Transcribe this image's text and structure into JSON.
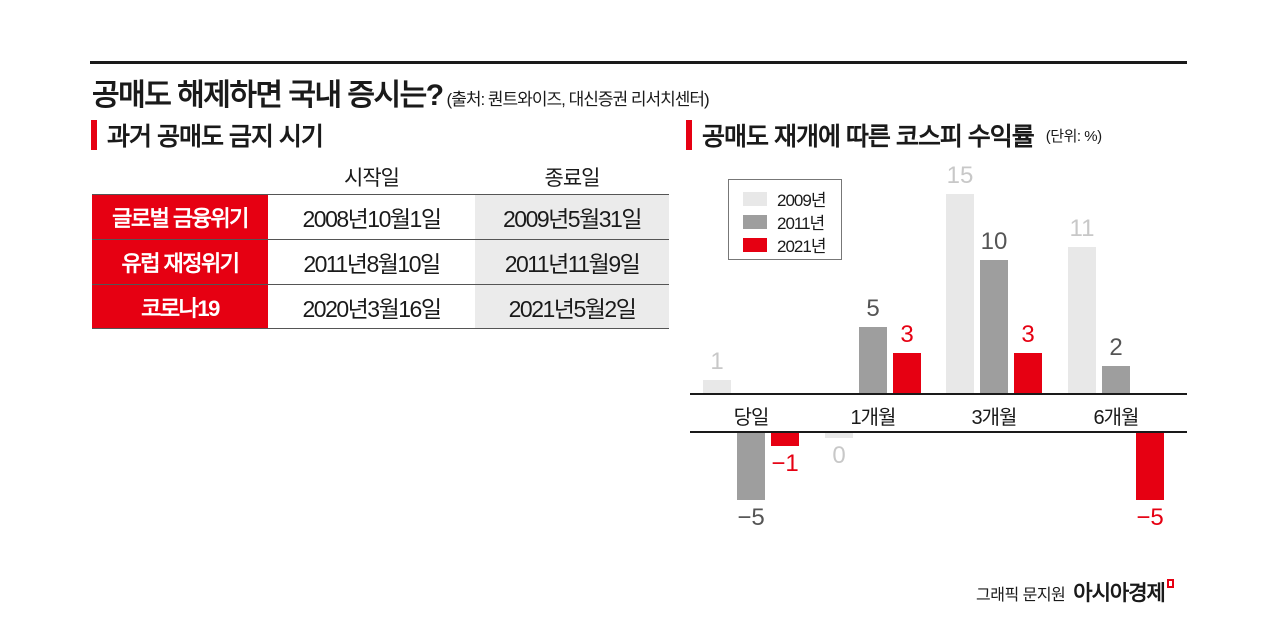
{
  "header": {
    "title": "공매도 해제하면 국내 증시는?",
    "source": "(출처: 퀀트와이즈, 대신증권 리서치센터)"
  },
  "left_section": {
    "title": "과거 공매도 금지 시기",
    "columns": [
      "",
      "시작일",
      "종료일"
    ],
    "rows": [
      {
        "label": "글로벌 금융위기",
        "start": "2008년10월1일",
        "end": "2009년5월31일"
      },
      {
        "label": "유럽 재정위기",
        "start": "2011년8월10일",
        "end": "2011년11월9일"
      },
      {
        "label": "코로나19",
        "start": "2020년3월16일",
        "end": "2021년5월2일"
      }
    ]
  },
  "right_section": {
    "title": "공매도 재개에 따른 코스피 수익률",
    "unit": "(단위: %)"
  },
  "colors": {
    "accent": "#e60012",
    "series_2009": "#e8e8e8",
    "series_2011": "#9e9e9e",
    "series_2021": "#e60012",
    "label_2009": "#c8c8c8",
    "label_2011": "#555555",
    "label_2021": "#e60012"
  },
  "chart_data": {
    "type": "bar",
    "title": "공매도 재개에 따른 코스피 수익률",
    "unit": "%",
    "categories": [
      "당일",
      "1개월",
      "3개월",
      "6개월"
    ],
    "series": [
      {
        "name": "2009년",
        "values": [
          1,
          0,
          15,
          11
        ],
        "labels": [
          "1",
          "0",
          "15",
          "11"
        ]
      },
      {
        "name": "2011년",
        "values": [
          -5,
          5,
          10,
          2
        ],
        "labels": [
          "−5",
          "5",
          "10",
          "2"
        ]
      },
      {
        "name": "2021년",
        "values": [
          -1,
          3,
          3,
          -5
        ],
        "labels": [
          "−1",
          "3",
          "3",
          "−5"
        ]
      }
    ],
    "legend": [
      "2009년",
      "2011년",
      "2021년"
    ],
    "legend_position": "top-left",
    "grid": false,
    "xlabel": "",
    "ylabel": ""
  },
  "footer": {
    "credit": "그래픽 문지원",
    "brand": "아시아경제"
  }
}
